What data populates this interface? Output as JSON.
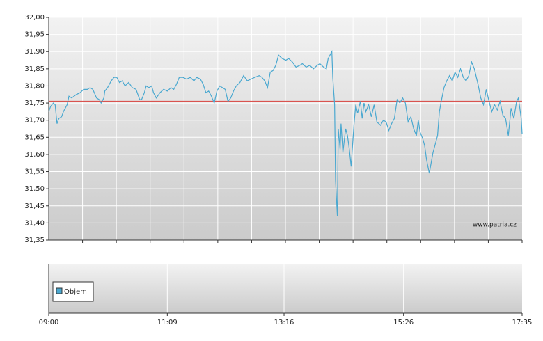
{
  "chart_data": {
    "type": "line",
    "x": [
      540,
      542,
      545,
      547,
      549,
      551,
      554,
      556,
      558,
      560,
      562,
      565,
      570,
      574,
      578,
      582,
      585,
      588,
      592,
      595,
      597,
      600,
      601,
      604,
      606,
      608,
      611,
      614,
      617,
      620,
      623,
      627,
      631,
      635,
      637,
      639,
      641,
      644,
      646,
      649,
      652,
      654,
      657,
      661,
      665,
      669,
      673,
      676,
      679,
      682,
      686,
      690,
      694,
      698,
      701,
      705,
      708,
      711,
      714,
      717,
      720,
      723,
      726,
      729,
      732,
      735,
      738,
      741,
      744,
      748,
      752,
      756,
      760,
      764,
      769,
      772,
      775,
      778,
      781,
      784,
      787,
      790,
      794,
      798,
      801,
      805,
      809,
      813,
      816,
      820,
      824,
      828,
      832,
      835,
      839,
      842,
      844,
      848,
      849,
      851,
      852,
      854,
      855,
      857,
      858,
      860,
      863,
      865,
      867,
      869,
      872,
      874,
      876,
      879,
      881,
      883,
      885,
      888,
      891,
      894,
      897,
      901,
      904,
      907,
      910,
      913,
      916,
      919,
      922,
      925,
      928,
      931,
      934,
      937,
      940,
      942,
      944,
      947,
      949,
      951,
      954,
      956,
      958,
      960,
      963,
      965,
      967,
      970,
      973,
      976,
      979,
      982,
      985,
      988,
      991,
      994,
      997,
      1000,
      1003,
      1007,
      1010,
      1013,
      1016,
      1019,
      1022,
      1025,
      1028,
      1031,
      1034,
      1037,
      1040,
      1043,
      1046,
      1049,
      1051,
      1054,
      1055
    ],
    "series": [
      {
        "color": "#4aa8d0",
        "values": [
          31.725,
          31.74,
          31.75,
          31.745,
          31.69,
          31.705,
          31.71,
          31.725,
          31.735,
          31.745,
          31.77,
          31.765,
          31.775,
          31.78,
          31.79,
          31.79,
          31.795,
          31.79,
          31.765,
          31.76,
          31.75,
          31.765,
          31.785,
          31.795,
          31.805,
          31.815,
          31.825,
          31.825,
          31.81,
          31.815,
          31.8,
          31.81,
          31.795,
          31.79,
          31.775,
          31.76,
          31.76,
          31.78,
          31.8,
          31.795,
          31.8,
          31.78,
          31.765,
          31.78,
          31.79,
          31.785,
          31.795,
          31.79,
          31.805,
          31.825,
          31.825,
          31.82,
          31.825,
          31.815,
          31.825,
          31.82,
          31.805,
          31.78,
          31.785,
          31.77,
          31.75,
          31.785,
          31.8,
          31.795,
          31.79,
          31.755,
          31.765,
          31.785,
          31.8,
          31.81,
          31.83,
          31.815,
          31.82,
          31.825,
          31.83,
          31.825,
          31.815,
          31.795,
          31.84,
          31.845,
          31.86,
          31.89,
          31.88,
          31.875,
          31.88,
          31.87,
          31.855,
          31.86,
          31.865,
          31.855,
          31.86,
          31.85,
          31.86,
          31.865,
          31.855,
          31.85,
          31.88,
          31.9,
          31.825,
          31.745,
          31.525,
          31.42,
          31.675,
          31.615,
          31.69,
          31.605,
          31.675,
          31.655,
          31.615,
          31.565,
          31.685,
          31.745,
          31.72,
          31.755,
          31.705,
          31.75,
          31.725,
          31.745,
          31.71,
          31.745,
          31.695,
          31.685,
          31.7,
          31.695,
          31.67,
          31.69,
          31.705,
          31.76,
          31.75,
          31.765,
          31.75,
          31.695,
          31.71,
          31.675,
          31.655,
          31.7,
          31.665,
          31.645,
          31.625,
          31.585,
          31.545,
          31.575,
          31.605,
          31.625,
          31.655,
          31.725,
          31.755,
          31.795,
          31.815,
          31.83,
          31.815,
          31.84,
          31.825,
          31.85,
          31.825,
          31.815,
          31.83,
          31.87,
          31.85,
          31.805,
          31.765,
          31.745,
          31.79,
          31.755,
          31.725,
          31.745,
          31.73,
          31.755,
          31.715,
          31.705,
          31.655,
          31.735,
          31.705,
          31.755,
          31.765,
          31.705,
          31.66
        ]
      }
    ],
    "reference_line": 31.755,
    "reference_color": "#d9534f",
    "xlim": [
      540,
      1055
    ],
    "xticks": [
      {
        "value": 540,
        "label": "09:00"
      },
      {
        "value": 669,
        "label": "11:09"
      },
      {
        "value": 796,
        "label": "13:16"
      },
      {
        "value": 926,
        "label": "15:26"
      },
      {
        "value": 1055,
        "label": "17:35"
      }
    ],
    "ylim": [
      31.35,
      32
    ],
    "yticks": [
      {
        "value": 31.35,
        "label": "31,35"
      },
      {
        "value": 31.4,
        "label": "31,40"
      },
      {
        "value": 31.45,
        "label": "31,45"
      },
      {
        "value": 31.5,
        "label": "31,50"
      },
      {
        "value": 31.55,
        "label": "31,55"
      },
      {
        "value": 31.6,
        "label": "31,60"
      },
      {
        "value": 31.65,
        "label": "31,65"
      },
      {
        "value": 31.7,
        "label": "31,70"
      },
      {
        "value": 31.75,
        "label": "31,75"
      },
      {
        "value": 31.8,
        "label": "31,80"
      },
      {
        "value": 31.85,
        "label": "31,85"
      },
      {
        "value": 31.9,
        "label": "31,90"
      },
      {
        "value": 31.95,
        "label": "31,95"
      },
      {
        "value": {
          "value": 32,
          "label": "32,00"
        }
      }
    ],
    "grid": true,
    "watermark": "www.patria.cz",
    "volume_legend": "Objem",
    "volume_color": "#4aa8d0"
  }
}
